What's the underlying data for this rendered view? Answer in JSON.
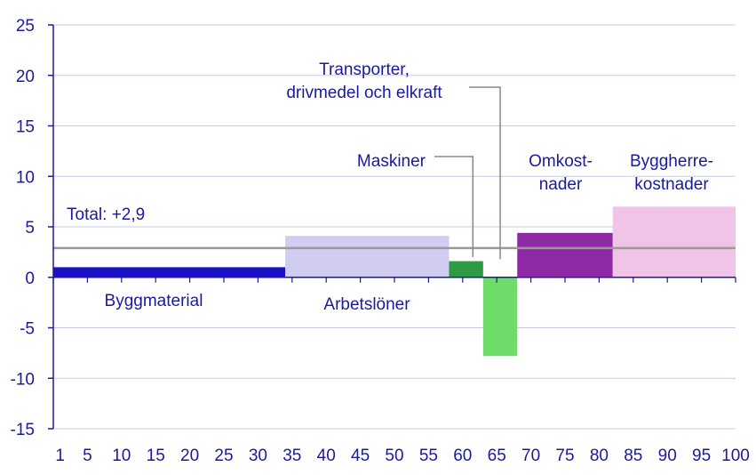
{
  "chart_data": {
    "type": "bar",
    "title": "",
    "xlabel": "",
    "ylabel": "",
    "xlim": [
      0,
      100
    ],
    "ylim": [
      -15,
      25
    ],
    "x_ticks": [
      1,
      5,
      10,
      15,
      20,
      25,
      30,
      35,
      40,
      45,
      50,
      55,
      60,
      65,
      70,
      75,
      80,
      85,
      90,
      95,
      100
    ],
    "y_ticks": [
      25,
      20,
      15,
      10,
      5,
      0,
      -5,
      -10,
      -15
    ],
    "grid": true,
    "series": [
      {
        "label": "Byggmaterial",
        "x_start": 0,
        "x_end": 34,
        "value": 1.0,
        "color": "#1a0fc4"
      },
      {
        "label": "Arbetslöner",
        "x_start": 34,
        "x_end": 58,
        "value": 4.1,
        "color": "#d0ccf2"
      },
      {
        "label": "Maskiner",
        "x_start": 58,
        "x_end": 63,
        "value": 1.6,
        "color": "#2e9a45"
      },
      {
        "label": "Transporter, drivmedel och elkraft",
        "x_start": 63,
        "x_end": 68,
        "value": -7.8,
        "color": "#6fdc6a"
      },
      {
        "label": "Omkostnader",
        "x_start": 68,
        "x_end": 82,
        "value": 4.4,
        "color": "#8e2aa4"
      },
      {
        "label": "Byggherrekostnader",
        "x_start": 82,
        "x_end": 100,
        "value": 7.0,
        "color": "#f0c4e6"
      }
    ],
    "total": {
      "label": "Total: +2,9",
      "value": 2.9,
      "color": "#999999"
    },
    "annotations": {
      "byggmaterial": "Byggmaterial",
      "arbetsloner": "Arbetslöner",
      "maskiner": "Maskiner",
      "transporter_line1": "Transporter,",
      "transporter_line2": "drivmedel och elkraft",
      "omkost_line1": "Omkost-",
      "omkost_line2": "nader",
      "byggherre_line1": "Byggherre-",
      "byggherre_line2": "kostnader"
    }
  }
}
